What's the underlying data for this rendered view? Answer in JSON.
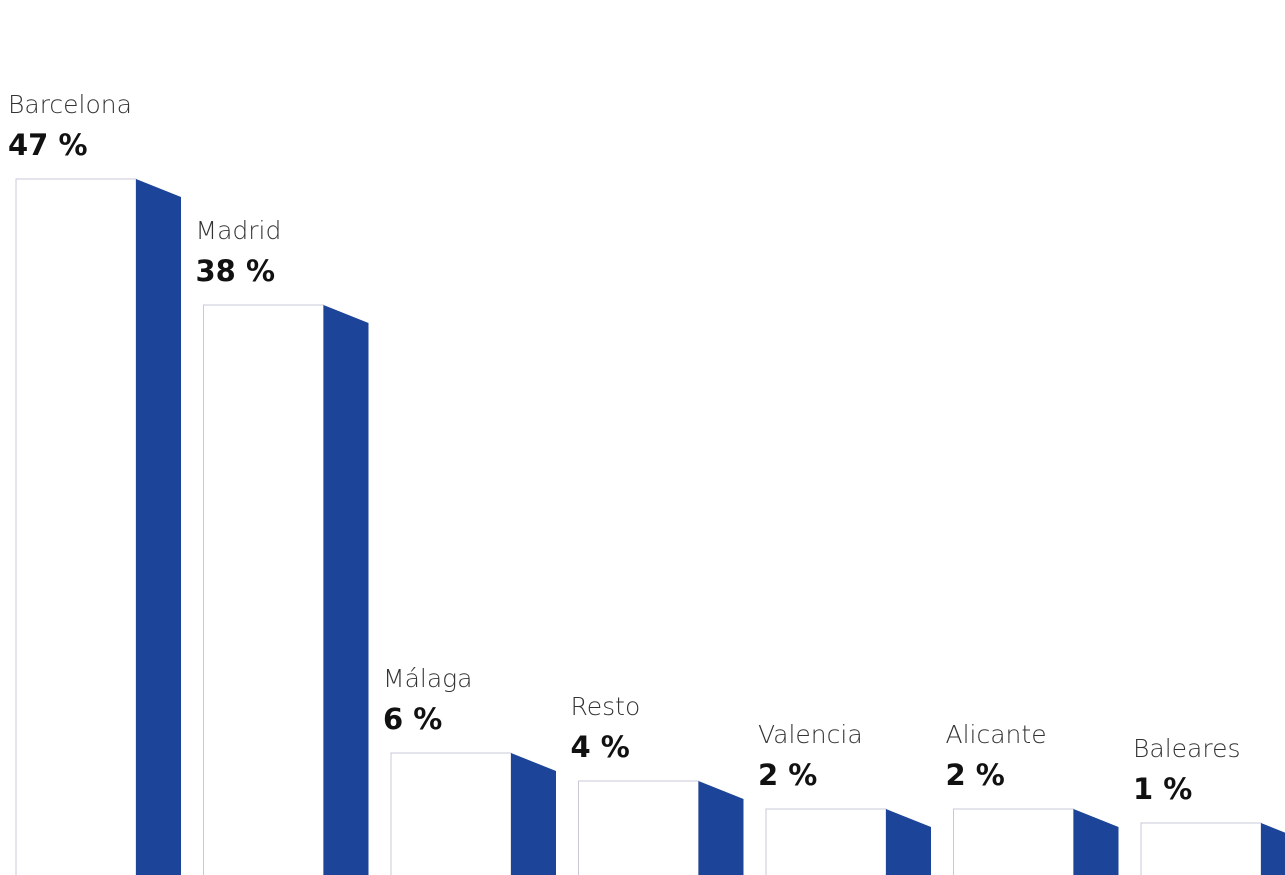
{
  "chart_data": {
    "type": "bar",
    "categories": [
      "Barcelona",
      "Madrid",
      "Málaga",
      "Resto",
      "Valencia",
      "Alicante",
      "Baleares"
    ],
    "values": [
      47,
      38,
      6,
      4,
      2,
      2,
      1
    ],
    "value_labels": [
      "47 %",
      "38 %",
      "6 %",
      "4 %",
      "2 %",
      "2 %",
      "1 %"
    ],
    "unit": "%",
    "title": "",
    "xlabel": "",
    "ylabel": "",
    "legend": "none",
    "grid": false,
    "colors": {
      "front": "#ffffff",
      "front_border": "#c8c8d8",
      "side": "#1c4499"
    }
  }
}
